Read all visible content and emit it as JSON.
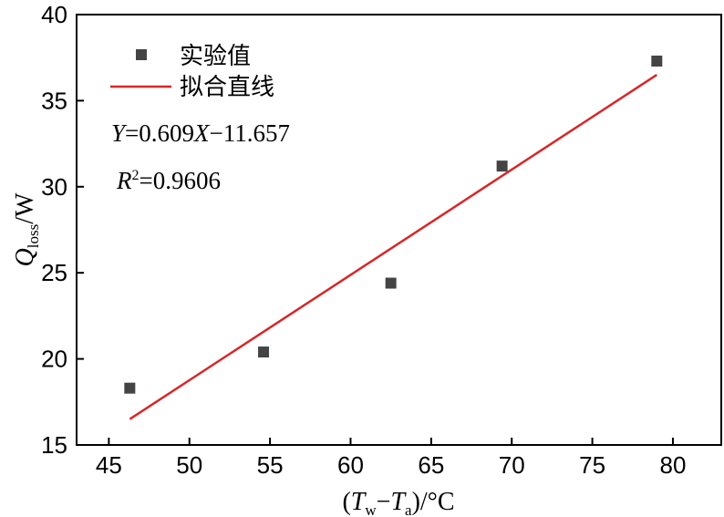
{
  "chart_data": {
    "type": "scatter",
    "x_axis": {
      "label_prefix": "(",
      "label_T1": "T",
      "label_sub1": "w",
      "label_minus": "−",
      "label_T2": "T",
      "label_sub2": "a",
      "label_suffix": ")/°C",
      "range": [
        43,
        83
      ],
      "ticks": [
        45,
        50,
        55,
        60,
        65,
        70,
        75,
        80
      ]
    },
    "y_axis": {
      "label_Q": "Q",
      "label_sub": "loss",
      "label_suffix": "/W",
      "range": [
        15,
        40
      ],
      "ticks": [
        15,
        20,
        25,
        30,
        35,
        40
      ]
    },
    "series": [
      {
        "name": "实验值",
        "kind": "points",
        "color": "#444444",
        "marker": "square",
        "x": [
          46.3,
          54.6,
          62.5,
          69.4,
          79.0
        ],
        "y": [
          18.3,
          20.4,
          24.4,
          31.2,
          37.3
        ]
      },
      {
        "name": "拟合直线",
        "kind": "line",
        "color": "#d62728",
        "x": [
          46.3,
          79.0
        ],
        "y": [
          16.5,
          36.5
        ]
      }
    ],
    "annotations": {
      "equation_Y": "Y",
      "equation_mid": "=0.609",
      "equation_X": "X",
      "equation_tail": "−11.657",
      "r2_R": "R",
      "r2_sup": "2",
      "r2_value": "=0.9606"
    },
    "legend_position": "top-left",
    "grid": false
  }
}
